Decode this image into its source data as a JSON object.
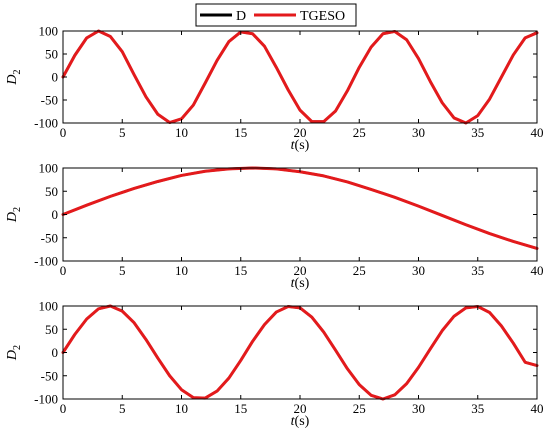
{
  "legend": {
    "entries": [
      {
        "name": "D",
        "color": "#000000"
      },
      {
        "name": "TGESO",
        "color": "#e31a1c"
      }
    ],
    "placement": "top-center"
  },
  "chart_data": [
    {
      "type": "line",
      "xlabel_var": "t",
      "xlabel_unit": "(s)",
      "ylabel_var": "D",
      "ylabel_sub": "2",
      "xlim": [
        0,
        40
      ],
      "ylim": [
        -100,
        100
      ],
      "xticks": [
        "0",
        "5",
        "10",
        "15",
        "20",
        "25",
        "30",
        "35",
        "40"
      ],
      "yticks": [
        "100",
        "50",
        "0",
        "-50",
        "-100"
      ],
      "grid": false,
      "x": [
        0,
        1,
        2,
        3,
        4,
        5,
        6,
        7,
        8,
        9,
        10,
        11,
        12,
        13,
        14,
        15,
        16,
        17,
        18,
        19,
        20,
        21,
        22,
        23,
        24,
        25,
        26,
        27,
        28,
        29,
        30,
        31,
        32,
        33,
        34,
        35,
        36,
        37,
        38,
        39,
        40
      ],
      "series": [
        {
          "name": "D",
          "values": [
            0,
            48,
            85,
            100,
            88,
            55,
            5,
            -43,
            -81,
            -99,
            -91,
            -61,
            -13,
            36,
            77,
            98,
            94,
            67,
            21,
            -28,
            -72,
            -97,
            -97,
            -74,
            -30,
            21,
            65,
            94,
            99,
            81,
            40,
            -10,
            -56,
            -89,
            -100,
            -84,
            -48,
            0,
            48,
            85,
            97
          ]
        },
        {
          "name": "TGESO",
          "values": [
            0,
            47,
            85,
            100,
            88,
            55,
            5,
            -43,
            -81,
            -99,
            -91,
            -61,
            -13,
            36,
            77,
            98,
            94,
            67,
            21,
            -28,
            -72,
            -97,
            -97,
            -74,
            -30,
            21,
            65,
            94,
            99,
            81,
            40,
            -10,
            -56,
            -89,
            -100,
            -84,
            -48,
            0,
            48,
            85,
            96
          ]
        }
      ]
    },
    {
      "type": "line",
      "xlabel_var": "t",
      "xlabel_unit": "(s)",
      "ylabel_var": "D",
      "ylabel_sub": "2",
      "xlim": [
        0,
        40
      ],
      "ylim": [
        -100,
        100
      ],
      "xticks": [
        "0",
        "5",
        "10",
        "15",
        "20",
        "25",
        "30",
        "35",
        "40"
      ],
      "yticks": [
        "100",
        "50",
        "0",
        "-50",
        "-100"
      ],
      "grid": false,
      "x": [
        0,
        2,
        4,
        6,
        8,
        10,
        12,
        14,
        16,
        18,
        20,
        22,
        24,
        26,
        28,
        30,
        32,
        34,
        36,
        38,
        40
      ],
      "series": [
        {
          "name": "D",
          "values": [
            0,
            20,
            39,
            56,
            71,
            84,
            93,
            98,
            100,
            98,
            92,
            83,
            70,
            54,
            37,
            18,
            -2,
            -22,
            -41,
            -58,
            -73
          ]
        },
        {
          "name": "TGESO",
          "values": [
            0,
            20,
            39,
            56,
            71,
            84,
            93,
            98,
            100,
            98,
            92,
            83,
            70,
            54,
            37,
            18,
            -2,
            -22,
            -41,
            -58,
            -73
          ]
        }
      ]
    },
    {
      "type": "line",
      "xlabel_var": "t",
      "xlabel_unit": "(s)",
      "ylabel_var": "D",
      "ylabel_sub": "2",
      "xlim": [
        0,
        40
      ],
      "ylim": [
        -100,
        100
      ],
      "xticks": [
        "0",
        "5",
        "10",
        "15",
        "20",
        "25",
        "30",
        "35",
        "40"
      ],
      "yticks": [
        "100",
        "50",
        "0",
        "-50",
        "-100"
      ],
      "grid": false,
      "x": [
        0,
        1,
        2,
        3,
        4,
        5,
        6,
        7,
        8,
        9,
        10,
        11,
        12,
        13,
        14,
        15,
        16,
        17,
        18,
        19,
        20,
        21,
        22,
        23,
        24,
        25,
        26,
        27,
        28,
        29,
        30,
        31,
        32,
        33,
        34,
        35,
        36,
        37,
        38,
        39,
        40
      ],
      "series": [
        {
          "name": "D",
          "values": [
            0,
            39,
            72,
            94,
            100,
            89,
            64,
            28,
            -12,
            -50,
            -80,
            -97,
            -98,
            -83,
            -55,
            -17,
            24,
            60,
            87,
            99,
            96,
            76,
            44,
            5,
            -35,
            -69,
            -92,
            -100,
            -91,
            -67,
            -32,
            8,
            47,
            78,
            96,
            99,
            86,
            57,
            20,
            -21,
            -28
          ]
        },
        {
          "name": "TGESO",
          "values": [
            0,
            39,
            72,
            94,
            100,
            89,
            64,
            28,
            -12,
            -50,
            -80,
            -97,
            -98,
            -83,
            -55,
            -17,
            24,
            60,
            87,
            99,
            96,
            76,
            44,
            5,
            -35,
            -69,
            -92,
            -100,
            -91,
            -67,
            -32,
            8,
            47,
            78,
            96,
            99,
            86,
            57,
            20,
            -21,
            -28
          ]
        }
      ]
    }
  ]
}
